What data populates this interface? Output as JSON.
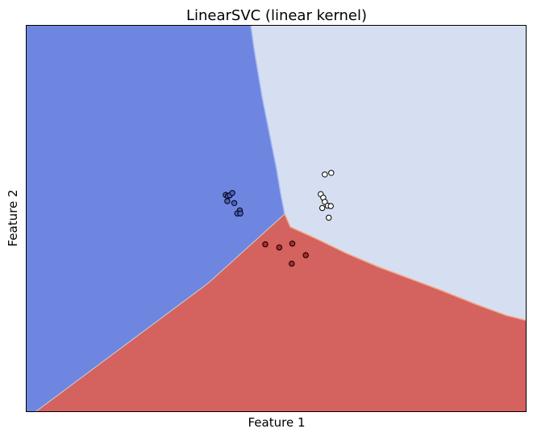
{
  "chart_data": {
    "type": "scatter",
    "title": "LinearSVC (linear kernel)",
    "xlabel": "Feature 1",
    "ylabel": "Feature 2",
    "xticks": [],
    "yticks": [],
    "grid": false,
    "decision_regions": [
      {
        "class": 0,
        "color": "#6f86e0"
      },
      {
        "class": 1,
        "color": "#d6dff2"
      },
      {
        "class": 2,
        "color": "#d4625e"
      }
    ],
    "boundary_colors": {
      "class0_class1": "#a9bcf5",
      "class1_class2": "#f4a582",
      "class0_class2": "#cfcfcf"
    },
    "series": [
      {
        "class": 0,
        "color": "#4a5fc4",
        "points": [
          [
            0.4,
            0.56
          ],
          [
            0.404,
            0.557
          ],
          [
            0.408,
            0.559
          ],
          [
            0.413,
            0.565
          ],
          [
            0.403,
            0.544
          ],
          [
            0.417,
            0.539
          ],
          [
            0.428,
            0.52
          ],
          [
            0.423,
            0.512
          ],
          [
            0.429,
            0.512
          ]
        ]
      },
      {
        "class": 1,
        "color": "#ffffff",
        "points": [
          [
            0.598,
            0.613
          ],
          [
            0.611,
            0.617
          ],
          [
            0.59,
            0.562
          ],
          [
            0.595,
            0.553
          ],
          [
            0.598,
            0.542
          ],
          [
            0.604,
            0.532
          ],
          [
            0.61,
            0.531
          ],
          [
            0.593,
            0.526
          ],
          [
            0.606,
            0.501
          ]
        ]
      },
      {
        "class": 2,
        "color": "#b02a2a",
        "points": [
          [
            0.479,
            0.432
          ],
          [
            0.507,
            0.424
          ],
          [
            0.533,
            0.434
          ],
          [
            0.56,
            0.404
          ],
          [
            0.532,
            0.382
          ]
        ]
      }
    ]
  }
}
